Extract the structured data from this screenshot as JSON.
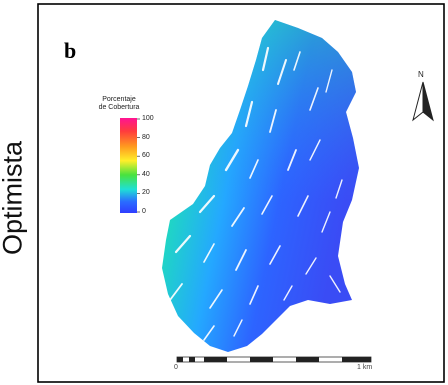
{
  "side_label": "Optimista",
  "panel_letter": "b",
  "legend": {
    "title_line1": "Porcentaje",
    "title_line2": "de Cobertura",
    "ticks": [
      "100",
      "80",
      "60",
      "40",
      "20",
      "0"
    ],
    "color_ramp": [
      "#ff1493",
      "#ff3c3c",
      "#ff9a1f",
      "#ffef2a",
      "#48e23e",
      "#1fe0d5",
      "#2a6dff",
      "#2f3dff"
    ]
  },
  "north_arrow": {
    "label": "N"
  },
  "scale_bar": {
    "start_label": "0",
    "end_label": "1 km"
  },
  "map_colors": {
    "high": "#43e87a",
    "mid": "#21c8ff",
    "low": "#2d59ff"
  }
}
